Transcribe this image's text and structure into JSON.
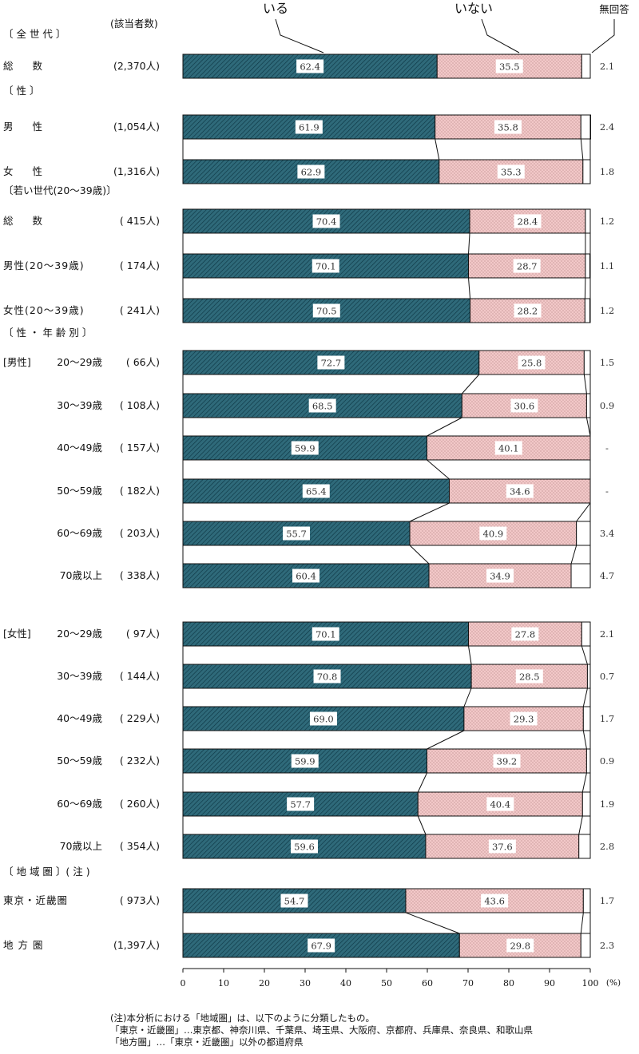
{
  "chart_data": {
    "type": "bar",
    "stacked": true,
    "orientation": "horizontal",
    "header": {
      "count_label": "(該当者数)"
    },
    "series": [
      {
        "name": "いる",
        "color": "#2f6a7a"
      },
      {
        "name": "いない",
        "color": "#f2c8c8"
      },
      {
        "name": "無回答",
        "color": "#ffffff"
      }
    ],
    "sections": [
      {
        "label": "〔 全 世 代 〕"
      },
      {
        "label": "〔 性 〕"
      },
      {
        "label": "〔若い世代(20～39歳)〕"
      },
      {
        "label": "〔 性 ・ 年 齢 別 〕"
      },
      {
        "label": "〔 地 域 圏 〕( 注 )"
      }
    ],
    "rows": [
      {
        "group": "",
        "label": "総 数",
        "n": "(2,370人)",
        "values": [
          62.4,
          35.5,
          2.1
        ],
        "labels": [
          "62.4",
          "35.5",
          "2.1"
        ]
      },
      {
        "group": "",
        "label": "男 性",
        "n": "(1,054人)",
        "values": [
          61.9,
          35.8,
          2.4
        ],
        "labels": [
          "61.9",
          "35.8",
          "2.4"
        ]
      },
      {
        "group": "",
        "label": "女 性",
        "n": "(1,316人)",
        "values": [
          62.9,
          35.3,
          1.8
        ],
        "labels": [
          "62.9",
          "35.3",
          "1.8"
        ]
      },
      {
        "group": "",
        "label": "総 数",
        "n": "( 415人)",
        "values": [
          70.4,
          28.4,
          1.2
        ],
        "labels": [
          "70.4",
          "28.4",
          "1.2"
        ]
      },
      {
        "group": "",
        "label": "男性(20～39歳)",
        "n": "( 174人)",
        "values": [
          70.1,
          28.7,
          1.1
        ],
        "labels": [
          "70.1",
          "28.7",
          "1.1"
        ]
      },
      {
        "group": "",
        "label": "女性(20～39歳)",
        "n": "( 241人)",
        "values": [
          70.5,
          28.2,
          1.2
        ],
        "labels": [
          "70.5",
          "28.2",
          "1.2"
        ]
      },
      {
        "group": "[男性]",
        "label": "20～29歳",
        "n": "( 66人)",
        "values": [
          72.7,
          25.8,
          1.5
        ],
        "labels": [
          "72.7",
          "25.8",
          "1.5"
        ]
      },
      {
        "group": "",
        "label": "30～39歳",
        "n": "( 108人)",
        "values": [
          68.5,
          30.6,
          0.9
        ],
        "labels": [
          "68.5",
          "30.6",
          "0.9"
        ]
      },
      {
        "group": "",
        "label": "40～49歳",
        "n": "( 157人)",
        "values": [
          59.9,
          40.1,
          0
        ],
        "labels": [
          "59.9",
          "40.1",
          "-"
        ]
      },
      {
        "group": "",
        "label": "50～59歳",
        "n": "( 182人)",
        "values": [
          65.4,
          34.6,
          0
        ],
        "labels": [
          "65.4",
          "34.6",
          "-"
        ]
      },
      {
        "group": "",
        "label": "60～69歳",
        "n": "( 203人)",
        "values": [
          55.7,
          40.9,
          3.4
        ],
        "labels": [
          "55.7",
          "40.9",
          "3.4"
        ]
      },
      {
        "group": "",
        "label": "70歳以上",
        "n": "( 338人)",
        "values": [
          60.4,
          34.9,
          4.7
        ],
        "labels": [
          "60.4",
          "34.9",
          "4.7"
        ]
      },
      {
        "group": "[女性]",
        "label": "20～29歳",
        "n": "( 97人)",
        "values": [
          70.1,
          27.8,
          2.1
        ],
        "labels": [
          "70.1",
          "27.8",
          "2.1"
        ]
      },
      {
        "group": "",
        "label": "30～39歳",
        "n": "( 144人)",
        "values": [
          70.8,
          28.5,
          0.7
        ],
        "labels": [
          "70.8",
          "28.5",
          "0.7"
        ]
      },
      {
        "group": "",
        "label": "40～49歳",
        "n": "( 229人)",
        "values": [
          69.0,
          29.3,
          1.7
        ],
        "labels": [
          "69.0",
          "29.3",
          "1.7"
        ]
      },
      {
        "group": "",
        "label": "50～59歳",
        "n": "( 232人)",
        "values": [
          59.9,
          39.2,
          0.9
        ],
        "labels": [
          "59.9",
          "39.2",
          "0.9"
        ]
      },
      {
        "group": "",
        "label": "60～69歳",
        "n": "( 260人)",
        "values": [
          57.7,
          40.4,
          1.9
        ],
        "labels": [
          "57.7",
          "40.4",
          "1.9"
        ]
      },
      {
        "group": "",
        "label": "70歳以上",
        "n": "( 354人)",
        "values": [
          59.6,
          37.6,
          2.8
        ],
        "labels": [
          "59.6",
          "37.6",
          "2.8"
        ]
      },
      {
        "group": "",
        "label": "東京・近畿圏",
        "n": "( 973人)",
        "values": [
          54.7,
          43.6,
          1.7
        ],
        "labels": [
          "54.7",
          "43.6",
          "1.7"
        ]
      },
      {
        "group": "",
        "label": "地 方 圏",
        "n": "(1,397人)",
        "values": [
          67.9,
          29.8,
          2.3
        ],
        "labels": [
          "67.9",
          "29.8",
          "2.3"
        ]
      }
    ],
    "xaxis": {
      "ticks": [
        0,
        10,
        20,
        30,
        40,
        50,
        60,
        70,
        80,
        90,
        100
      ],
      "unit": "(%)",
      "xlim": [
        0,
        100
      ]
    }
  },
  "notes": [
    "(注)本分析における「地域圏」は、以下のように分類したもの。",
    "「東京・近畿圏」…東京都、神奈川県、千葉県、埼玉県、大阪府、京都府、兵庫県、奈良県、和歌山県",
    "「地方圏」…「東京・近畿圏」以外の都道府県"
  ]
}
